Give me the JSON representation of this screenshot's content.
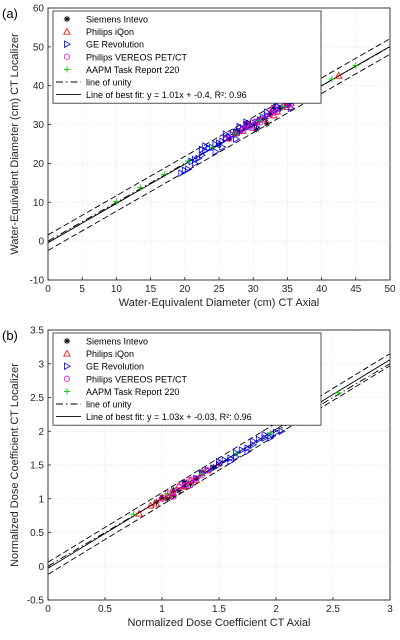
{
  "chart_data": [
    {
      "panel_label": "(a)",
      "type": "scatter",
      "xlabel": "Water-Equivalent Diameter (cm) CT Axial",
      "ylabel": "Water-Equivalent Diameter (cm) CT Localizer",
      "xlim": [
        0,
        50
      ],
      "ylim": [
        -10,
        60
      ],
      "xticks": [
        0,
        5,
        10,
        15,
        20,
        25,
        30,
        35,
        40,
        45,
        50
      ],
      "yticks": [
        -10,
        0,
        10,
        20,
        30,
        40,
        50,
        60
      ],
      "xtick_labels": [
        "0",
        "5",
        "10",
        "15",
        "20",
        "25",
        "30",
        "35",
        "40",
        "45",
        "50"
      ],
      "ytick_labels": [
        "-10",
        "0",
        "10",
        "20",
        "30",
        "40",
        "50",
        "60"
      ],
      "grid": true,
      "legend_placement": "top-left",
      "series": [
        {
          "name": "Siemens Intevo",
          "marker": "star",
          "color": "#000000",
          "x": [
            25,
            26.5,
            27.2,
            28,
            28.8,
            29.5,
            30.2,
            31,
            31.8,
            32.5,
            33.2,
            34,
            35,
            36,
            37.5,
            30.5,
            32,
            33,
            27.5,
            29
          ],
          "y": [
            24.8,
            26.3,
            27.4,
            28.1,
            29.2,
            29.8,
            30.1,
            31.4,
            31.5,
            32.9,
            33.6,
            34.2,
            35.2,
            36.4,
            37.8,
            28.8,
            30.2,
            34.5,
            28.4,
            30.3
          ]
        },
        {
          "name": "Philips iQon",
          "marker": "triangle-up",
          "color": "#ff0000",
          "x": [
            26,
            27.5,
            28.5,
            29.5,
            30.5,
            31.5,
            32.5,
            33.5,
            34.5,
            35.5,
            36.5,
            38,
            42.5,
            30,
            33,
            35
          ],
          "y": [
            26.5,
            27.8,
            28.4,
            30.1,
            30.6,
            31.3,
            33.1,
            33.4,
            35,
            35.6,
            36.8,
            38.3,
            42.6,
            29.2,
            32.4,
            34.5
          ]
        },
        {
          "name": "GE Revolution",
          "marker": "triangle-right",
          "color": "#0000ff",
          "x": [
            19.5,
            20,
            20.5,
            21,
            21.5,
            22,
            22.5,
            23,
            23.5,
            24,
            24.5,
            25,
            25.5,
            26,
            26.5,
            27,
            27.5,
            28,
            28.5,
            29,
            29.5,
            30,
            30.5,
            31,
            31.5,
            32,
            33,
            34,
            35,
            36,
            37,
            21.5,
            23,
            24.5,
            26,
            27.5,
            29,
            30.5,
            32,
            28,
            25.5,
            22.5,
            33.5,
            35.5
          ],
          "y": [
            17.5,
            18.2,
            18.5,
            20.5,
            21,
            21.3,
            22.1,
            23.3,
            23.8,
            24.1,
            24.9,
            25.2,
            25.7,
            26.5,
            26.8,
            27.4,
            28,
            28.2,
            28.9,
            29.5,
            29.6,
            30.5,
            30.6,
            31.1,
            31.8,
            32.3,
            33.4,
            34.3,
            35.2,
            36.1,
            37.5,
            20,
            24.5,
            23,
            27.5,
            26.3,
            30.6,
            29.3,
            33.2,
            29.5,
            24.2,
            23.6,
            34.8,
            34.2
          ]
        },
        {
          "name": "Philips VEREOS PET/CT",
          "marker": "circle",
          "color": "#ff00ff",
          "x": [
            26.5,
            27.5,
            28.5,
            29.5,
            30.5,
            31.5,
            32.5,
            33.5,
            34.5,
            35.5,
            36.5,
            29,
            31,
            33
          ],
          "y": [
            26.4,
            27.6,
            28.7,
            29.3,
            30.8,
            31.4,
            32.6,
            33.2,
            34.8,
            35.3,
            36.3,
            30,
            30.5,
            34.1
          ]
        },
        {
          "name": "AAPM Task Report 220",
          "marker": "plus",
          "color": "#00cc00",
          "x": [
            10,
            13.5,
            17,
            20.5,
            24,
            27.5,
            31,
            34.5,
            38,
            41.5,
            45
          ],
          "y": [
            10.2,
            13.8,
            17.2,
            20.6,
            24.1,
            27.6,
            31.1,
            34.6,
            38.1,
            41.7,
            45.2
          ]
        }
      ],
      "lines": [
        {
          "name": "line of unity",
          "style": "dash-dot",
          "slope": 1.0,
          "intercept": 0
        },
        {
          "name": "Line of best fit: y = 1.01x + -0.4, R²: 0.96",
          "style": "solid",
          "slope": 1.01,
          "intercept": -0.4
        },
        {
          "name": "",
          "style": "dashed",
          "slope": 1.01,
          "intercept": 1.6
        },
        {
          "name": "",
          "style": "dashed",
          "slope": 1.01,
          "intercept": -2.4
        }
      ]
    },
    {
      "panel_label": "(b)",
      "type": "scatter",
      "xlabel": "Normalized Dose Coefficient CT Axial",
      "ylabel": "Normalized Dose Coefficient CT Localizer",
      "xlim": [
        0,
        3
      ],
      "ylim": [
        -0.5,
        3.5
      ],
      "xticks": [
        0,
        0.5,
        1,
        1.5,
        2,
        2.5,
        3
      ],
      "yticks": [
        -0.5,
        0,
        0.5,
        1,
        1.5,
        2,
        2.5,
        3,
        3.5
      ],
      "xtick_labels": [
        "0",
        "0.5",
        "1",
        "1.5",
        "2",
        "2.5",
        "3"
      ],
      "ytick_labels": [
        "-0.5",
        "0",
        "0.5",
        "1",
        "1.5",
        "2",
        "2.5",
        "3",
        "3.5"
      ],
      "grid": true,
      "legend_placement": "top-left",
      "series": [
        {
          "name": "Siemens Intevo",
          "marker": "star",
          "color": "#000000",
          "x": [
            0.95,
            1.0,
            1.05,
            1.1,
            1.15,
            1.2,
            1.25,
            1.3,
            1.35,
            1.45,
            1.1,
            1.2
          ],
          "y": [
            0.95,
            1.02,
            1.0,
            1.13,
            1.12,
            1.25,
            1.22,
            1.3,
            1.4,
            1.47,
            1.05,
            1.18
          ]
        },
        {
          "name": "Philips iQon",
          "marker": "triangle-up",
          "color": "#ff0000",
          "x": [
            0.8,
            0.9,
            0.95,
            1.0,
            1.05,
            1.1,
            1.15,
            1.2,
            1.25,
            1.3,
            1.35,
            1.4,
            1.5
          ],
          "y": [
            0.78,
            0.9,
            0.93,
            1.02,
            1.05,
            1.08,
            1.2,
            1.18,
            1.27,
            1.28,
            1.38,
            1.42,
            1.53
          ]
        },
        {
          "name": "GE Revolution",
          "marker": "triangle-right",
          "color": "#0000ff",
          "x": [
            1.2,
            1.3,
            1.4,
            1.45,
            1.5,
            1.55,
            1.6,
            1.65,
            1.7,
            1.75,
            1.8,
            1.85,
            1.9,
            1.95,
            2.0,
            2.05,
            1.35,
            1.5,
            1.65,
            1.8,
            1.95,
            1.6,
            1.75,
            1.9
          ],
          "y": [
            1.22,
            1.3,
            1.42,
            1.45,
            1.5,
            1.57,
            1.6,
            1.68,
            1.72,
            1.75,
            1.8,
            1.88,
            1.9,
            1.93,
            1.98,
            2.0,
            1.38,
            1.55,
            1.62,
            1.85,
            1.9,
            1.55,
            1.7,
            1.95
          ]
        },
        {
          "name": "Philips VEREOS PET/CT",
          "marker": "circle",
          "color": "#ff00ff",
          "x": [
            1.0,
            1.05,
            1.1,
            1.15,
            1.2,
            1.25,
            1.3,
            1.35,
            1.4,
            1.1,
            1.25
          ],
          "y": [
            1.0,
            1.08,
            1.1,
            1.17,
            1.2,
            1.28,
            1.3,
            1.35,
            1.42,
            1.03,
            1.2
          ]
        },
        {
          "name": "AAPM Task Report 220",
          "marker": "plus",
          "color": "#00cc00",
          "x": [
            0.75,
            1.05,
            1.35,
            1.65,
            1.95,
            2.25,
            2.55
          ],
          "y": [
            0.77,
            1.07,
            1.37,
            1.67,
            1.97,
            2.27,
            2.57
          ]
        }
      ],
      "lines": [
        {
          "name": "line of unity",
          "style": "dash-dot",
          "slope": 1.0,
          "intercept": 0
        },
        {
          "name": "Line of best fit: y = 1.03x + -0.03, R²: 0.96",
          "style": "solid",
          "slope": 1.03,
          "intercept": -0.03
        },
        {
          "name": "",
          "style": "dashed",
          "slope": 1.03,
          "intercept": 0.06
        },
        {
          "name": "",
          "style": "dashed",
          "slope": 1.03,
          "intercept": -0.12
        }
      ]
    }
  ]
}
